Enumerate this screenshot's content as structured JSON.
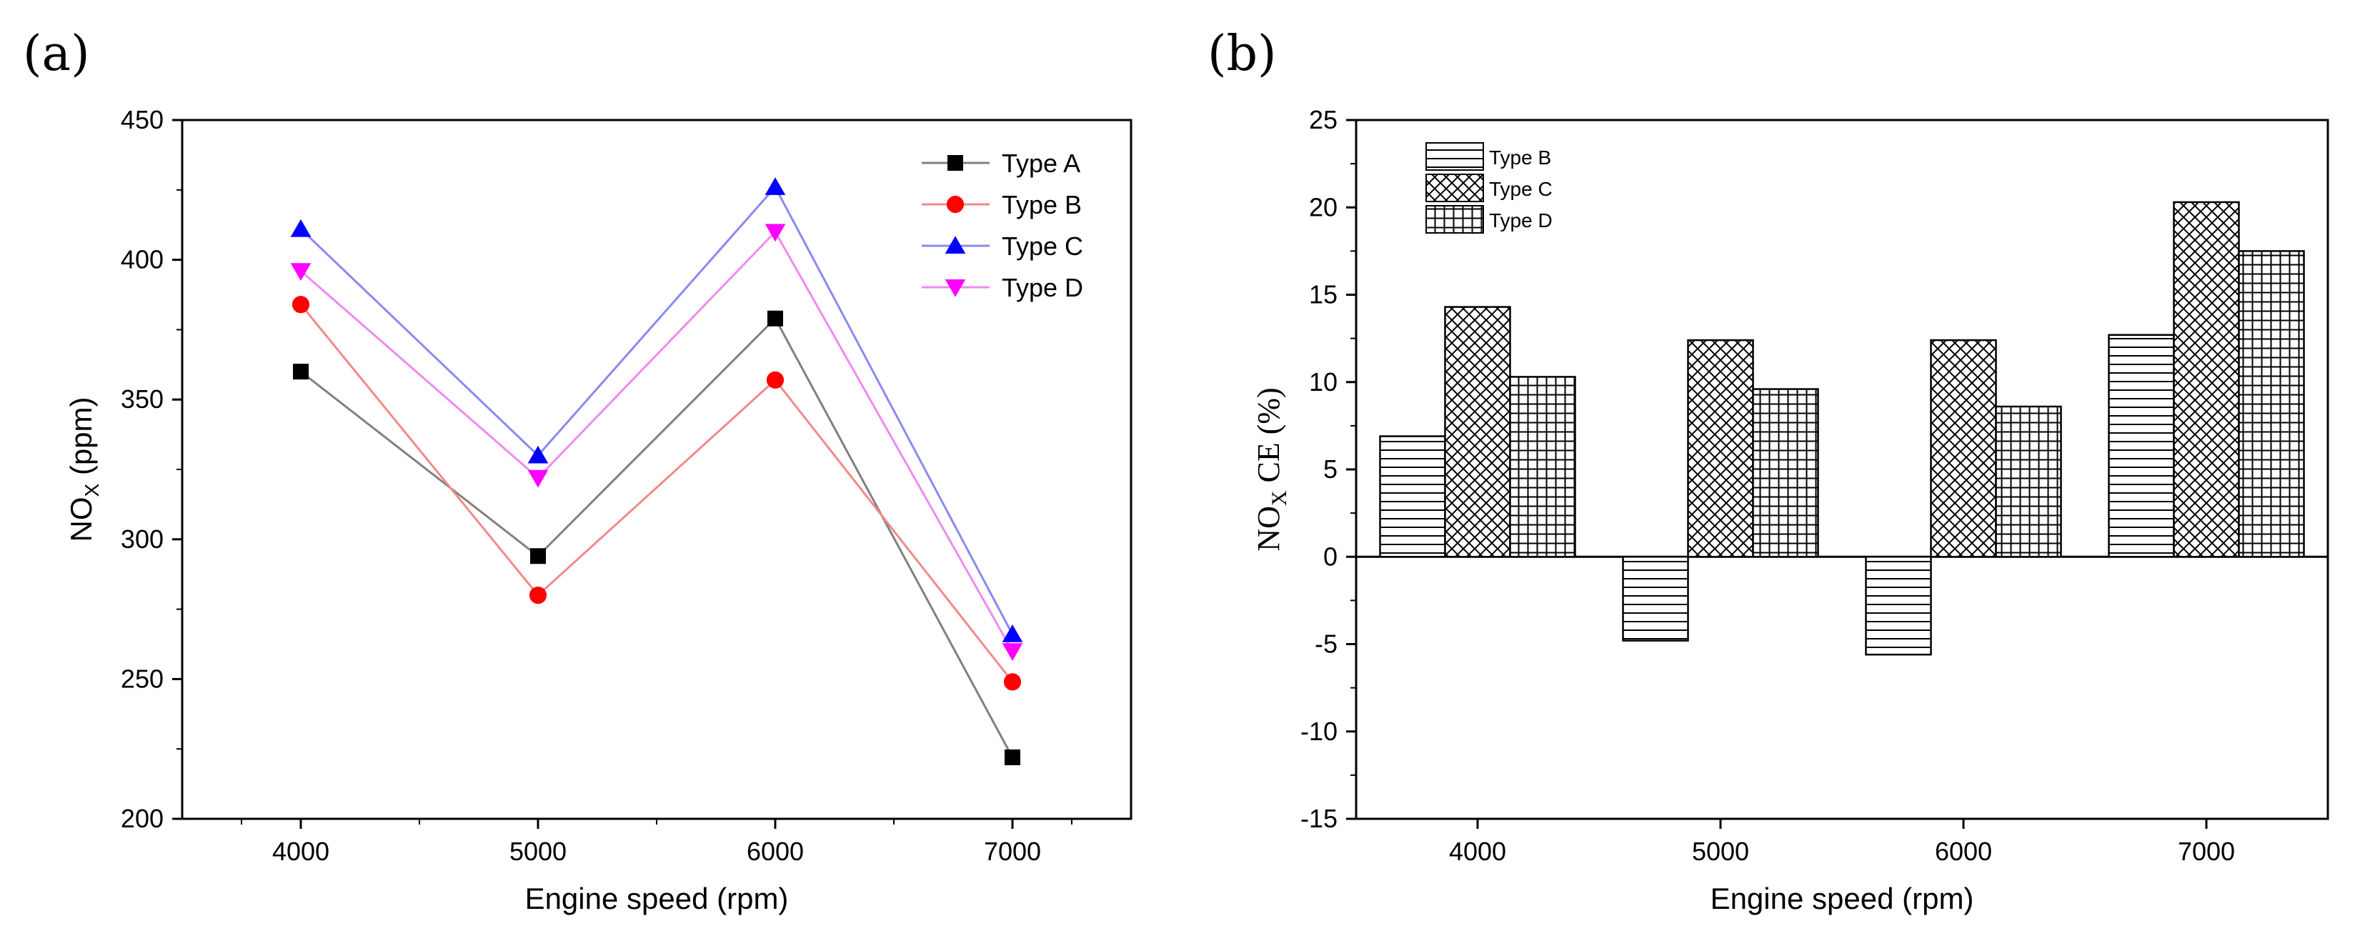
{
  "panel_labels": [
    "(a)",
    "(b)"
  ],
  "chart_data": [
    {
      "type": "line",
      "panel": "(a)",
      "title": "",
      "xlabel": "Engine speed (rpm)",
      "ylabel_main": "NO",
      "ylabel_sub": "X",
      "ylabel_unit": " (ppm)",
      "x": [
        4000,
        5000,
        6000,
        7000
      ],
      "xlim": [
        3500,
        7500
      ],
      "ylim": [
        200,
        450
      ],
      "yticks": [
        200,
        250,
        300,
        350,
        400,
        450
      ],
      "xticks": [
        4000,
        5000,
        6000,
        7000
      ],
      "legend_position": "top-right",
      "series": [
        {
          "name": "Type A",
          "values": [
            360,
            294,
            379,
            222
          ],
          "color": "#000000",
          "line_color": "#808080",
          "marker": "square"
        },
        {
          "name": "Type B",
          "values": [
            384,
            280,
            357,
            249
          ],
          "color": "#ff0000",
          "line_color": "#f08a8a",
          "marker": "circle"
        },
        {
          "name": "Type C",
          "values": [
            411,
            330,
            426,
            266
          ],
          "color": "#0000ff",
          "line_color": "#8a8af0",
          "marker": "triangle-up"
        },
        {
          "name": "Type D",
          "values": [
            396,
            322,
            410,
            260
          ],
          "color": "#ff00ff",
          "line_color": "#f08af0",
          "marker": "triangle-down"
        }
      ]
    },
    {
      "type": "bar",
      "panel": "(b)",
      "title": "",
      "xlabel": "Engine speed (rpm)",
      "ylabel_main": "NO",
      "ylabel_sub": "X",
      "ylabel_unit": " CE (%)",
      "categories": [
        "4000",
        "5000",
        "6000",
        "7000"
      ],
      "ylim": [
        -15,
        25
      ],
      "yticks": [
        -15,
        -10,
        -5,
        0,
        5,
        10,
        15,
        20,
        25
      ],
      "legend_position": "top-left",
      "series": [
        {
          "name": "Type B",
          "values": [
            6.9,
            -4.8,
            -5.6,
            12.7
          ],
          "pattern": "horizontal"
        },
        {
          "name": "Type C",
          "values": [
            14.3,
            12.4,
            12.4,
            20.3
          ],
          "pattern": "crosshatch"
        },
        {
          "name": "Type D",
          "values": [
            10.3,
            9.6,
            8.6,
            17.5
          ],
          "pattern": "grid"
        }
      ]
    }
  ]
}
